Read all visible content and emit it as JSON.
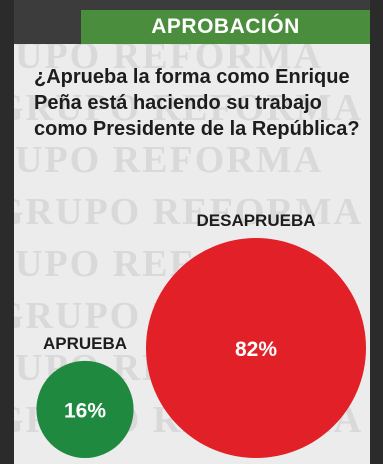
{
  "header": {
    "title": "APROBACIÓN"
  },
  "question": "¿Aprueba la forma como Enrique Peña está haciendo su trabajo como Presidente de la República?",
  "watermark": "GRUPO REFORMA",
  "colors": {
    "approve": "#1f8a3f",
    "disapprove": "#e12127",
    "header": "#4a8d3c"
  },
  "chart_data": {
    "type": "pie",
    "title": "APROBACIÓN",
    "subtitle": "¿Aprueba la forma como Enrique Peña está haciendo su trabajo como Presidente de la República?",
    "series": [
      {
        "name": "APRUEBA",
        "value": 16,
        "label": "16%",
        "color": "#1f8a3f"
      },
      {
        "name": "DESAPRUEBA",
        "value": 82,
        "label": "82%",
        "color": "#e12127"
      }
    ]
  }
}
